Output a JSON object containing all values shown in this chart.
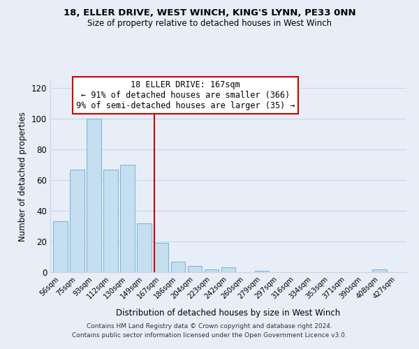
{
  "title1": "18, ELLER DRIVE, WEST WINCH, KING'S LYNN, PE33 0NN",
  "title2": "Size of property relative to detached houses in West Winch",
  "xlabel": "Distribution of detached houses by size in West Winch",
  "ylabel": "Number of detached properties",
  "bar_labels": [
    "56sqm",
    "75sqm",
    "93sqm",
    "112sqm",
    "130sqm",
    "149sqm",
    "167sqm",
    "186sqm",
    "204sqm",
    "223sqm",
    "242sqm",
    "260sqm",
    "279sqm",
    "297sqm",
    "316sqm",
    "334sqm",
    "353sqm",
    "371sqm",
    "390sqm",
    "408sqm",
    "427sqm"
  ],
  "bar_values": [
    33,
    67,
    100,
    67,
    70,
    32,
    19,
    7,
    4,
    2,
    3,
    0,
    1,
    0,
    0,
    0,
    0,
    0,
    0,
    2,
    0
  ],
  "bar_color": "#c5dff0",
  "bar_edge_color": "#7fb8d8",
  "highlight_bar_index": 6,
  "highlight_line_color": "#cc0000",
  "ylim": [
    0,
    125
  ],
  "yticks": [
    0,
    20,
    40,
    60,
    80,
    100,
    120
  ],
  "annotation_title": "18 ELLER DRIVE: 167sqm",
  "annotation_line1": "← 91% of detached houses are smaller (366)",
  "annotation_line2": "9% of semi-detached houses are larger (35) →",
  "annotation_box_color": "#ffffff",
  "annotation_box_edge": "#cc0000",
  "footer1": "Contains HM Land Registry data © Crown copyright and database right 2024.",
  "footer2": "Contains public sector information licensed under the Open Government Licence v3.0.",
  "background_color": "#e8eef8",
  "grid_color": "#c8d4e8"
}
